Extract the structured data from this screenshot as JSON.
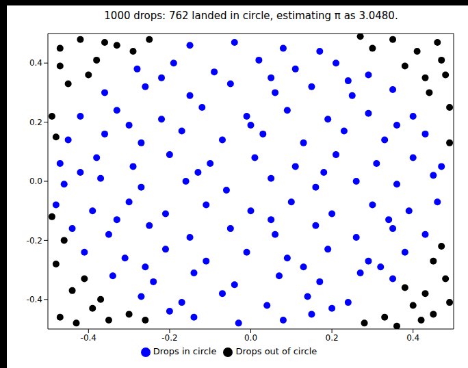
{
  "chart_data": {
    "type": "scatter",
    "title": "1000 drops: 762 landed in circle, estimating π as 3.0480.",
    "xlim": [
      -0.5,
      0.5
    ],
    "ylim": [
      -0.5,
      0.5
    ],
    "xticks": [
      -0.4,
      -0.2,
      {
        "value": 0,
        "label": "0.0"
      },
      0.2,
      0.4
    ],
    "yticks": [
      -0.4,
      -0.2,
      {
        "value": 0,
        "label": "0.0"
      },
      0.2,
      0.4
    ],
    "grid": false,
    "legend": "bottom",
    "series": [
      {
        "name": "Drops in circle",
        "color": "#0000ff",
        "marker": "circle",
        "x": [
          -0.15,
          -0.04,
          0.08,
          0.17,
          -0.28,
          -0.19,
          -0.09,
          0.02,
          0.11,
          0.21,
          0.29,
          -0.36,
          -0.26,
          -0.15,
          -0.05,
          0.06,
          0.15,
          0.25,
          0.35,
          -0.42,
          -0.33,
          -0.22,
          -0.12,
          -0.01,
          0.09,
          0.19,
          0.29,
          0.4,
          -0.45,
          -0.36,
          -0.27,
          -0.17,
          -0.07,
          0.03,
          0.13,
          0.23,
          0.33,
          0.43,
          -0.47,
          -0.38,
          -0.29,
          -0.2,
          -0.1,
          0.01,
          0.11,
          0.21,
          0.31,
          0.4,
          0.47,
          -0.46,
          -0.37,
          -0.27,
          -0.16,
          -0.06,
          0.05,
          0.16,
          0.26,
          0.36,
          0.45,
          -0.48,
          -0.39,
          -0.3,
          -0.21,
          -0.11,
          0.0,
          0.1,
          0.2,
          0.3,
          0.39,
          0.46,
          -0.44,
          -0.35,
          -0.25,
          -0.15,
          -0.05,
          0.06,
          0.16,
          0.26,
          0.35,
          0.43,
          -0.41,
          -0.31,
          -0.21,
          -0.11,
          -0.01,
          0.09,
          0.19,
          0.29,
          0.38,
          -0.34,
          -0.24,
          -0.14,
          -0.04,
          0.07,
          0.17,
          0.27,
          0.35,
          -0.27,
          -0.17,
          -0.07,
          0.04,
          0.14,
          0.24,
          -0.14,
          -0.03,
          0.08,
          0.15,
          -0.22,
          0.05,
          0.24,
          -0.3,
          0.0,
          0.36,
          -0.42,
          -0.13,
          0.18,
          -0.33,
          0.05,
          0.34,
          -0.26,
          0.13,
          0.32,
          -0.2,
          0.2
        ],
        "y": [
          0.46,
          0.47,
          0.45,
          0.44,
          0.38,
          0.4,
          0.37,
          0.41,
          0.38,
          0.4,
          0.36,
          0.3,
          0.32,
          0.29,
          0.33,
          0.3,
          0.32,
          0.29,
          0.31,
          0.22,
          0.24,
          0.21,
          0.25,
          0.22,
          0.24,
          0.21,
          0.23,
          0.22,
          0.14,
          0.16,
          0.13,
          0.17,
          0.14,
          0.16,
          0.13,
          0.17,
          0.14,
          0.16,
          0.06,
          0.08,
          0.05,
          0.09,
          0.06,
          0.08,
          0.05,
          0.09,
          0.06,
          0.08,
          0.05,
          -0.01,
          0.01,
          -0.02,
          0.0,
          -0.03,
          0.01,
          -0.02,
          0.0,
          -0.01,
          0.02,
          -0.08,
          -0.1,
          -0.07,
          -0.11,
          -0.08,
          -0.1,
          -0.07,
          -0.11,
          -0.08,
          -0.1,
          -0.07,
          -0.16,
          -0.18,
          -0.15,
          -0.19,
          -0.16,
          -0.18,
          -0.15,
          -0.19,
          -0.16,
          -0.18,
          -0.24,
          -0.26,
          -0.23,
          -0.27,
          -0.24,
          -0.26,
          -0.23,
          -0.27,
          -0.24,
          -0.32,
          -0.34,
          -0.31,
          -0.35,
          -0.32,
          -0.34,
          -0.31,
          -0.33,
          -0.39,
          -0.41,
          -0.38,
          -0.42,
          -0.39,
          -0.41,
          -0.46,
          -0.48,
          -0.47,
          -0.45,
          0.35,
          0.35,
          0.34,
          0.19,
          0.19,
          0.19,
          0.03,
          0.03,
          0.03,
          -0.13,
          -0.13,
          -0.13,
          -0.29,
          -0.29,
          -0.29,
          -0.44,
          -0.43
        ]
      },
      {
        "name": "Drops out of circle",
        "color": "#000000",
        "marker": "circle",
        "x": [
          -0.47,
          -0.42,
          -0.38,
          -0.45,
          -0.49,
          -0.33,
          -0.4,
          -0.29,
          -0.47,
          -0.36,
          -0.48,
          -0.25,
          0.46,
          0.41,
          0.48,
          0.35,
          0.44,
          0.38,
          0.49,
          0.3,
          0.47,
          0.27,
          0.43,
          0.49,
          -0.47,
          -0.39,
          -0.44,
          -0.35,
          -0.48,
          -0.41,
          -0.3,
          -0.46,
          -0.37,
          -0.43,
          -0.26,
          -0.49,
          0.45,
          0.4,
          0.48,
          0.33,
          0.43,
          0.47,
          0.28,
          0.38,
          0.49,
          0.36,
          0.45,
          0.42
        ],
        "y": [
          0.45,
          0.48,
          0.41,
          0.33,
          0.22,
          0.46,
          0.36,
          0.44,
          0.39,
          0.47,
          0.15,
          0.48,
          0.47,
          0.44,
          0.36,
          0.48,
          0.3,
          0.39,
          0.25,
          0.45,
          0.41,
          0.49,
          0.35,
          0.13,
          -0.46,
          -0.43,
          -0.37,
          -0.47,
          -0.28,
          -0.33,
          -0.45,
          -0.2,
          -0.4,
          -0.48,
          -0.47,
          -0.12,
          -0.45,
          -0.42,
          -0.33,
          -0.46,
          -0.38,
          -0.22,
          -0.48,
          -0.36,
          -0.41,
          -0.49,
          -0.27,
          -0.47
        ]
      }
    ]
  }
}
